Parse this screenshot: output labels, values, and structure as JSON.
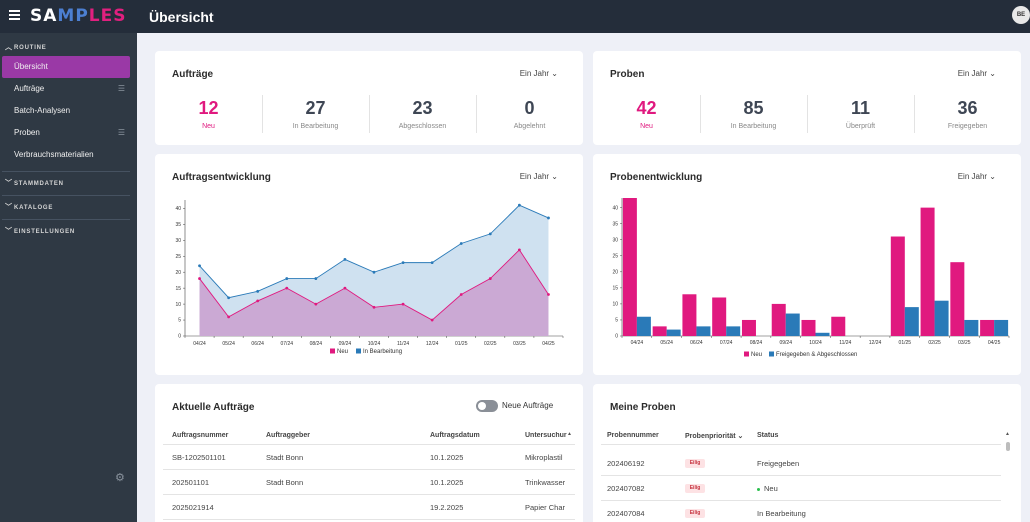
{
  "topbar": {
    "logo_parts": [
      "SA",
      "MP",
      "LES"
    ],
    "title": "Übersicht",
    "avatar": "BE"
  },
  "sidebar": {
    "sections": [
      {
        "label": "ROUTINE",
        "chevron": "^"
      },
      {
        "label": "STAMMDATEN",
        "chevron": "v"
      },
      {
        "label": "KATALOGE",
        "chevron": "v"
      },
      {
        "label": "EINSTELLUNGEN",
        "chevron": "v"
      }
    ],
    "items": [
      {
        "label": "Übersicht"
      },
      {
        "label": "Aufträge"
      },
      {
        "label": "Batch-Analysen"
      },
      {
        "label": "Proben"
      },
      {
        "label": "Verbrauchsmaterialien"
      }
    ]
  },
  "auftraege_card": {
    "title": "Aufträge",
    "period": "Ein Jahr ⌄",
    "stats": [
      {
        "value": "12",
        "label": "Neu"
      },
      {
        "value": "27",
        "label": "In Bearbeitung"
      },
      {
        "value": "23",
        "label": "Abgeschlossen"
      },
      {
        "value": "0",
        "label": "Abgelehnt"
      }
    ]
  },
  "proben_card": {
    "title": "Proben",
    "period": "Ein Jahr ⌄",
    "stats": [
      {
        "value": "42",
        "label": "Neu"
      },
      {
        "value": "85",
        "label": "In Bearbeitung"
      },
      {
        "value": "11",
        "label": "Überprüft"
      },
      {
        "value": "36",
        "label": "Freigegeben"
      }
    ]
  },
  "auftragsentwicklung": {
    "title": "Auftragsentwicklung",
    "period": "Ein Jahr ⌄"
  },
  "probenentwicklung": {
    "title": "Probenentwicklung",
    "period": "Ein Jahr ⌄"
  },
  "colors": {
    "pink": "#e0197f",
    "blue": "#2a7ab8",
    "purple_active": "#9a39a6"
  },
  "chart_data": [
    {
      "type": "area",
      "title": "Auftragsentwicklung",
      "categories": [
        "04/24",
        "05/24",
        "06/24",
        "07/24",
        "08/24",
        "09/24",
        "10/24",
        "11/24",
        "12/24",
        "01/25",
        "02/25",
        "03/25",
        "04/25"
      ],
      "series": [
        {
          "name": "Neu",
          "values": [
            18,
            6,
            11,
            15,
            10,
            15,
            9,
            10,
            5,
            13,
            18,
            27,
            13
          ]
        },
        {
          "name": "In Bearbeitung",
          "values": [
            22,
            12,
            14,
            18,
            18,
            24,
            20,
            23,
            23,
            29,
            32,
            41,
            37
          ]
        }
      ],
      "yticks": [
        0,
        5,
        10,
        15,
        20,
        25,
        30,
        35,
        40
      ],
      "ylim": [
        0,
        42
      ],
      "legend": "bottom"
    },
    {
      "type": "bar",
      "title": "Probenentwicklung",
      "categories": [
        "04/24",
        "05/24",
        "06/24",
        "07/24",
        "08/24",
        "09/24",
        "10/24",
        "11/24",
        "12/24",
        "01/25",
        "02/25",
        "03/25",
        "04/25"
      ],
      "series": [
        {
          "name": "Neu",
          "values": [
            43,
            3,
            13,
            12,
            5,
            10,
            5,
            6,
            0,
            31,
            40,
            23,
            5
          ]
        },
        {
          "name": "Freigegeben & Abgeschlossen",
          "values": [
            6,
            2,
            3,
            3,
            0,
            7,
            1,
            0,
            0,
            9,
            11,
            5,
            5
          ]
        }
      ],
      "yticks": [
        0,
        5,
        10,
        15,
        20,
        25,
        30,
        35,
        40
      ],
      "ylim": [
        0,
        43
      ],
      "legend": "bottom"
    }
  ],
  "aktuelle_auftraege": {
    "title": "Aktuelle Aufträge",
    "toggle_label": "Neue Aufträge",
    "columns": [
      "Auftragsnummer",
      "Auftraggeber",
      "Auftragsdatum",
      "Untersuchur"
    ],
    "rows": [
      [
        "SB-1202501101",
        "Stadt Bonn",
        "10.1.2025",
        "Mikroplastil"
      ],
      [
        "202501101",
        "Stadt Bonn",
        "10.1.2025",
        "Trinkwasser"
      ],
      [
        "2025021914",
        "",
        "19.2.2025",
        "Papier Char"
      ]
    ]
  },
  "meine_proben": {
    "title": "Meine Proben",
    "columns": [
      "Probennummer",
      "Probenpriorität ⌄",
      "Status"
    ],
    "rows": [
      {
        "nummer": "202406192",
        "prio": "Eilig",
        "status": "Freigegeben"
      },
      {
        "nummer": "202407082",
        "prio": "Eilig",
        "status": "Neu"
      },
      {
        "nummer": "202407084",
        "prio": "Eilig",
        "status": "In Bearbeitung"
      }
    ]
  }
}
